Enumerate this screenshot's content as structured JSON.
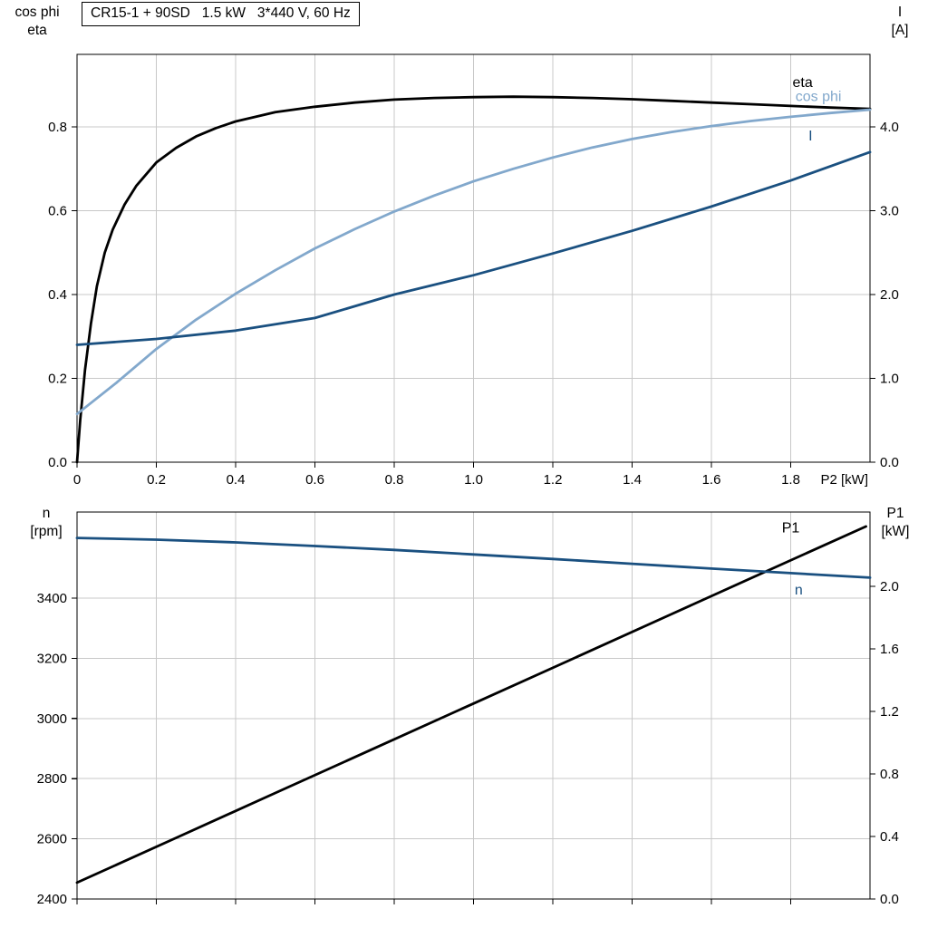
{
  "colors": {
    "black": "#000000",
    "dark_blue": "#1a5080",
    "light_blue": "#82a8cc",
    "grid": "#c8c8c8",
    "axis": "#000000"
  },
  "axis_corner_labels": {
    "top_left": [
      "cos phi",
      "eta"
    ],
    "top_right": [
      "I",
      "[A]"
    ],
    "bottom_left": [
      "n",
      "[rpm]"
    ],
    "bottom_right": [
      "P1",
      "[kW]"
    ]
  },
  "chart_data": [
    {
      "id": "top",
      "type": "line",
      "title": "CR15-1 + 90SD   1.5 kW   3*440 V, 60 Hz",
      "grid": true,
      "legend_position": "curve-end-labels",
      "x_axis": {
        "label": "P2 [kW]",
        "range": [
          0,
          2.0
        ],
        "ticks": [
          0,
          0.2,
          0.4,
          0.6,
          0.8,
          1.0,
          1.2,
          1.4,
          1.6,
          1.8
        ],
        "tick_labels": [
          "0",
          "0.2",
          "0.4",
          "0.6",
          "0.8",
          "1.0",
          "1.2",
          "1.4",
          "1.6",
          "1.8"
        ]
      },
      "y_left": {
        "label": "cos phi / eta",
        "range": [
          0,
          0.973
        ],
        "ticks": [
          0,
          0.2,
          0.4,
          0.6,
          0.8
        ],
        "tick_labels": [
          "0.0",
          "0.2",
          "0.4",
          "0.6",
          "0.8"
        ]
      },
      "y_right": {
        "label": "I [A]",
        "range": [
          0,
          4.865
        ],
        "ticks": [
          0,
          1,
          2,
          3,
          4
        ],
        "tick_labels": [
          "0.0",
          "1.0",
          "2.0",
          "3.0",
          "4.0"
        ]
      },
      "series": [
        {
          "name": "eta",
          "label": "eta",
          "axis": "left",
          "color": "black",
          "label_xy": [
            1.83,
            0.895
          ],
          "points": [
            [
              0,
              0
            ],
            [
              0.008,
              0.1
            ],
            [
              0.02,
              0.22
            ],
            [
              0.035,
              0.33
            ],
            [
              0.05,
              0.42
            ],
            [
              0.07,
              0.5
            ],
            [
              0.09,
              0.555
            ],
            [
              0.12,
              0.615
            ],
            [
              0.15,
              0.66
            ],
            [
              0.2,
              0.715
            ],
            [
              0.25,
              0.75
            ],
            [
              0.3,
              0.777
            ],
            [
              0.35,
              0.797
            ],
            [
              0.4,
              0.813
            ],
            [
              0.5,
              0.835
            ],
            [
              0.6,
              0.848
            ],
            [
              0.7,
              0.858
            ],
            [
              0.8,
              0.865
            ],
            [
              0.9,
              0.869
            ],
            [
              1.0,
              0.871
            ],
            [
              1.1,
              0.872
            ],
            [
              1.2,
              0.871
            ],
            [
              1.3,
              0.869
            ],
            [
              1.4,
              0.866
            ],
            [
              1.5,
              0.862
            ],
            [
              1.6,
              0.858
            ],
            [
              1.7,
              0.854
            ],
            [
              1.8,
              0.85
            ],
            [
              1.9,
              0.846
            ],
            [
              2.0,
              0.843
            ]
          ]
        },
        {
          "name": "cos-phi",
          "label": "cos phi",
          "axis": "left",
          "color": "light_blue",
          "label_xy": [
            1.87,
            0.862
          ],
          "points": [
            [
              0,
              0.115
            ],
            [
              0.1,
              0.19
            ],
            [
              0.2,
              0.27
            ],
            [
              0.3,
              0.34
            ],
            [
              0.4,
              0.402
            ],
            [
              0.5,
              0.458
            ],
            [
              0.6,
              0.51
            ],
            [
              0.7,
              0.556
            ],
            [
              0.8,
              0.598
            ],
            [
              0.9,
              0.636
            ],
            [
              1.0,
              0.67
            ],
            [
              1.1,
              0.7
            ],
            [
              1.2,
              0.727
            ],
            [
              1.3,
              0.751
            ],
            [
              1.4,
              0.771
            ],
            [
              1.5,
              0.788
            ],
            [
              1.6,
              0.802
            ],
            [
              1.7,
              0.814
            ],
            [
              1.8,
              0.824
            ],
            [
              1.9,
              0.833
            ],
            [
              2.0,
              0.841
            ]
          ]
        },
        {
          "name": "current",
          "label": "I",
          "axis": "right",
          "color": "dark_blue",
          "label_xy": [
            1.85,
            3.84
          ],
          "points": [
            [
              0,
              1.4
            ],
            [
              0.2,
              1.47
            ],
            [
              0.4,
              1.57
            ],
            [
              0.6,
              1.72
            ],
            [
              0.8,
              2.0
            ],
            [
              1.0,
              2.23
            ],
            [
              1.2,
              2.49
            ],
            [
              1.4,
              2.76
            ],
            [
              1.6,
              3.05
            ],
            [
              1.8,
              3.36
            ],
            [
              2.0,
              3.7
            ]
          ]
        }
      ]
    },
    {
      "id": "bot",
      "type": "line",
      "title": "",
      "grid": true,
      "legend_position": "curve-end-labels",
      "x_axis": {
        "label": "",
        "range": [
          0,
          2.0
        ],
        "ticks": [
          0,
          0.2,
          0.4,
          0.6,
          0.8,
          1.0,
          1.2,
          1.4,
          1.6,
          1.8
        ],
        "tick_labels": []
      },
      "y_left": {
        "label": "n [rpm]",
        "range": [
          2400,
          3686
        ],
        "ticks": [
          2400,
          2600,
          2800,
          3000,
          3200,
          3400
        ],
        "tick_labels": [
          "2400",
          "2600",
          "2800",
          "3000",
          "3200",
          "3400"
        ]
      },
      "y_right": {
        "label": "P1 [kW]",
        "range": [
          0,
          2.475
        ],
        "ticks": [
          0,
          0.4,
          0.8,
          1.2,
          1.6,
          2.0
        ],
        "tick_labels": [
          "0.0",
          "0.4",
          "0.8",
          "1.2",
          "1.6",
          "2.0"
        ]
      },
      "series": [
        {
          "name": "input-power",
          "label": "P1",
          "axis": "right",
          "color": "black",
          "label_xy": [
            1.8,
            2.345
          ],
          "points": [
            [
              0,
              0.105
            ],
            [
              0.25,
              0.391
            ],
            [
              0.5,
              0.678
            ],
            [
              0.75,
              0.964
            ],
            [
              1.0,
              1.25
            ],
            [
              1.25,
              1.536
            ],
            [
              1.5,
              1.823
            ],
            [
              1.75,
              2.109
            ],
            [
              1.99,
              2.383
            ]
          ]
        },
        {
          "name": "speed",
          "label": "n",
          "axis": "left",
          "color": "dark_blue",
          "label_xy": [
            1.82,
            3412
          ],
          "points": [
            [
              0,
              3600
            ],
            [
              0.2,
              3594
            ],
            [
              0.4,
              3585
            ],
            [
              0.6,
              3573
            ],
            [
              0.8,
              3560
            ],
            [
              1.0,
              3545
            ],
            [
              1.2,
              3530
            ],
            [
              1.4,
              3514
            ],
            [
              1.6,
              3498
            ],
            [
              1.8,
              3483
            ],
            [
              2.0,
              3468
            ]
          ]
        }
      ]
    }
  ]
}
